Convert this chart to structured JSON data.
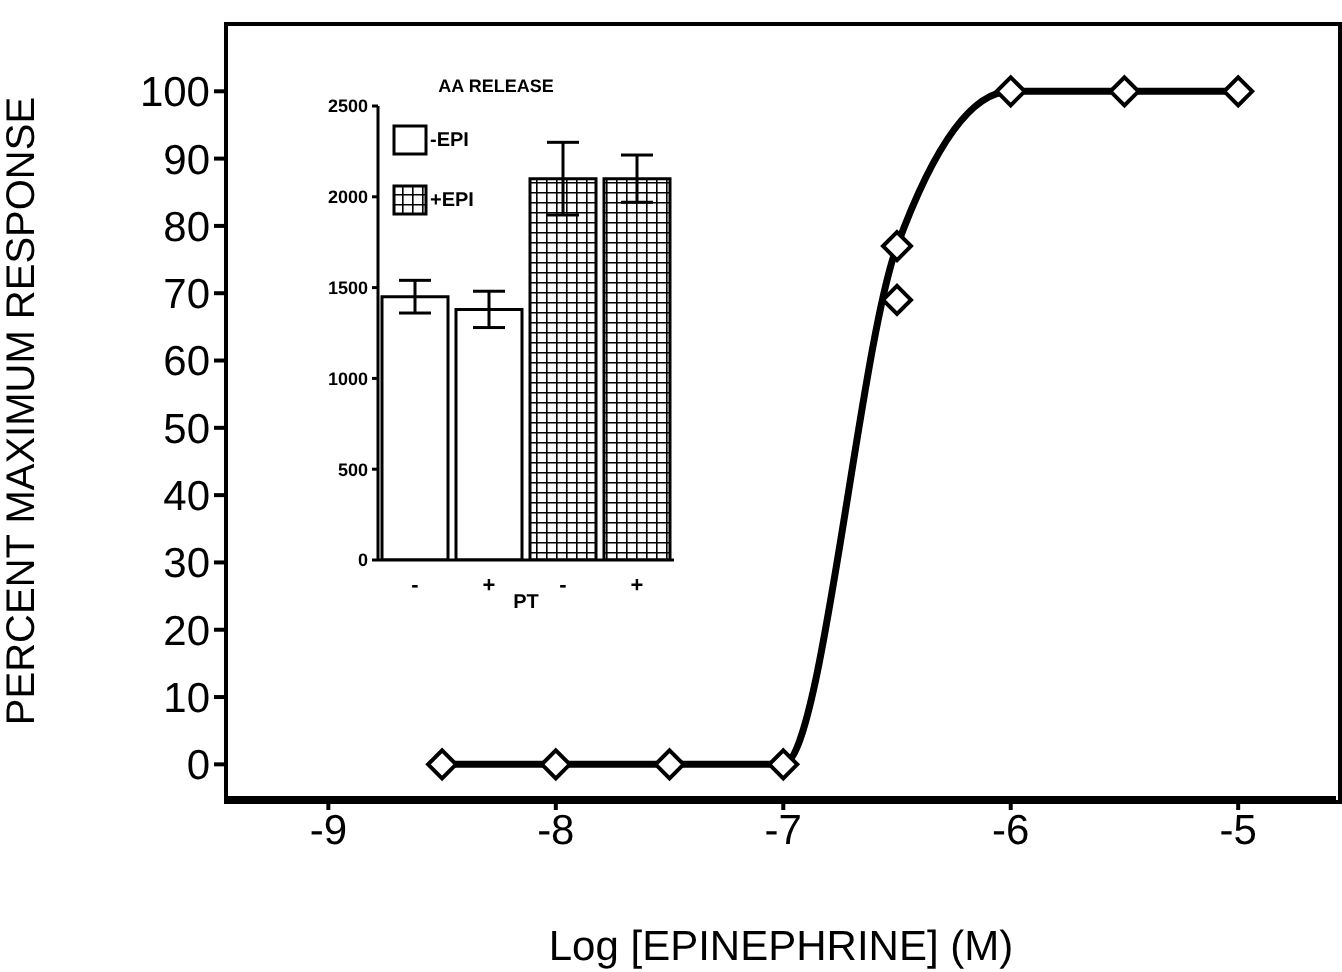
{
  "chart_data": [
    {
      "type": "line",
      "xlabel": "Log [EPINEPHRINE]   (M)",
      "ylabel": "PERCENT MAXIMUM RESPONSE",
      "xlim": [
        -9.45,
        -4.57
      ],
      "ylim": [
        -5,
        110
      ],
      "xticks": [
        -9,
        -8,
        -7,
        -6,
        -5
      ],
      "yticks": [
        0,
        10,
        20,
        30,
        40,
        50,
        60,
        70,
        80,
        90,
        100
      ],
      "marker": "diamond",
      "line_style": "solid",
      "grid": false,
      "legend": false,
      "series": [
        {
          "type": "line",
          "color": "#000000",
          "x": [
            -8.5,
            -8,
            -7.5,
            -7,
            -6.5,
            -6,
            -5.5,
            -5
          ],
          "values": [
            0,
            0,
            0,
            0,
            77,
            100,
            100,
            100
          ]
        },
        {
          "type": "scatter",
          "color": "#000000",
          "x": [
            -6.5
          ],
          "values": [
            69
          ]
        }
      ]
    },
    {
      "type": "bar",
      "title": "AA RELEASE",
      "xlabel": "PT",
      "categories": [
        "-",
        "+",
        "-",
        "+"
      ],
      "ylim": [
        0,
        2500
      ],
      "yticks": [
        0,
        500,
        1000,
        1500,
        2000,
        2500
      ],
      "legend": "top left",
      "grid": false,
      "series": [
        {
          "name": "-EPI",
          "color": "#ffffff",
          "values": [
            1450,
            1380,
            null,
            null
          ],
          "errors": [
            90,
            100,
            null,
            null
          ]
        },
        {
          "name": "+EPI",
          "color": "#000000",
          "values": [
            null,
            null,
            2100,
            2100
          ],
          "errors": [
            null,
            null,
            200,
            130
          ]
        }
      ]
    }
  ]
}
